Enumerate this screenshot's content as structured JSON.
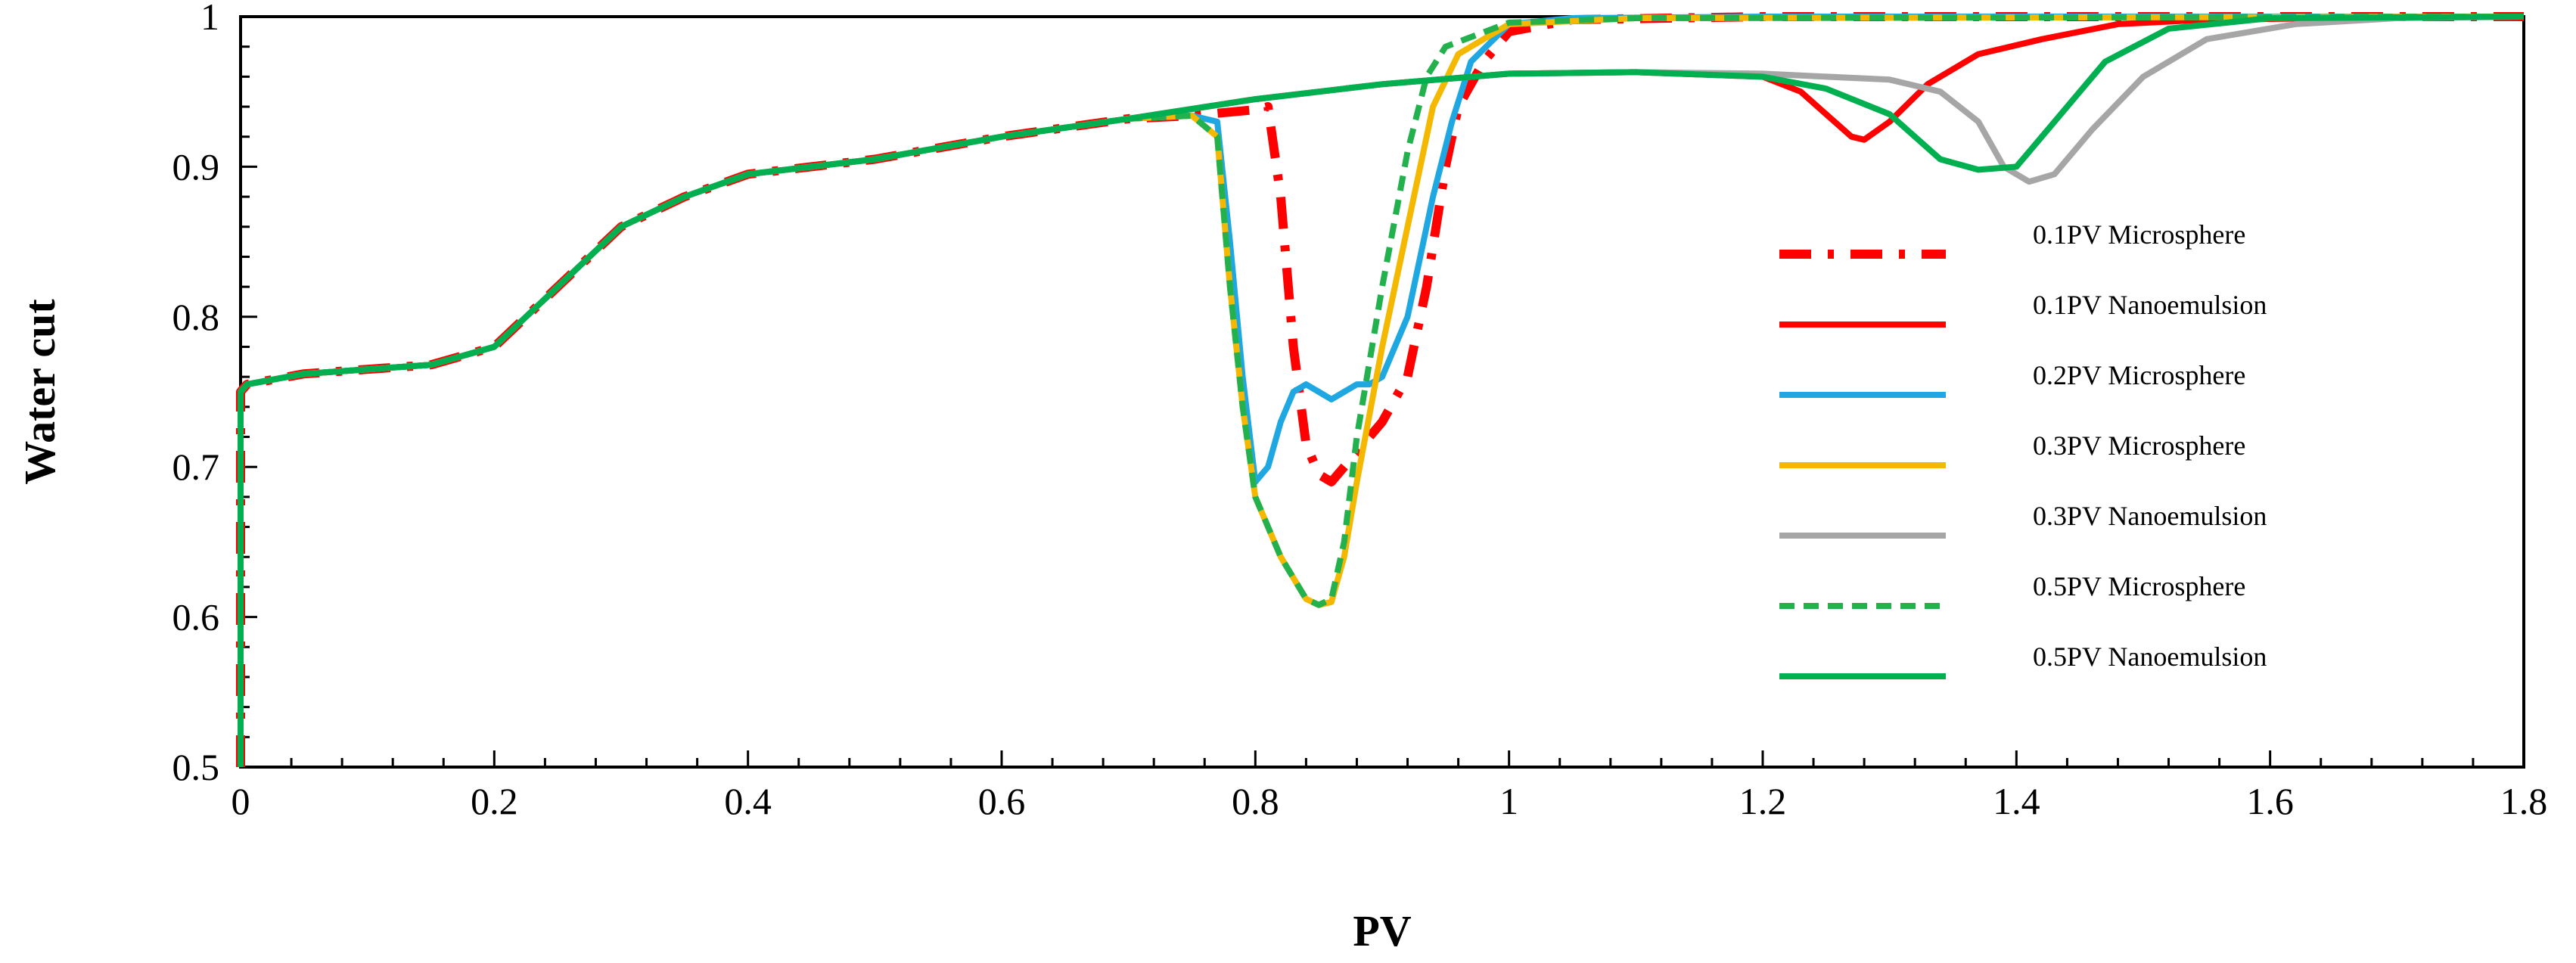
{
  "chart_data": {
    "type": "line",
    "title": "",
    "xlabel": "PV",
    "ylabel": "Water cut",
    "xlim": [
      0,
      1.8
    ],
    "ylim": [
      0.5,
      1.0
    ],
    "x_ticks": [
      0,
      0.2,
      0.4,
      0.6,
      0.8,
      1,
      1.2,
      1.4,
      1.6,
      1.8
    ],
    "y_ticks": [
      0.5,
      0.6,
      0.7,
      0.8,
      0.9,
      1
    ],
    "x_tick_labels": [
      "0",
      "0.2",
      "0.4",
      "0.6",
      "0.8",
      "1",
      "1.2",
      "1.4",
      "1.6",
      "1.8"
    ],
    "y_tick_labels": [
      "0.5",
      "0.6",
      "0.7",
      "0.8",
      "0.9",
      "1"
    ],
    "grid": false,
    "legend_position": "right",
    "series": [
      {
        "name": "0.1PV Microsphere",
        "color": "#ff0000",
        "style": "dashdot",
        "points": [
          [
            0,
            0.5
          ],
          [
            0,
            0.75
          ],
          [
            0.005,
            0.755
          ],
          [
            0.05,
            0.762
          ],
          [
            0.1,
            0.765
          ],
          [
            0.15,
            0.768
          ],
          [
            0.2,
            0.78
          ],
          [
            0.25,
            0.82
          ],
          [
            0.3,
            0.86
          ],
          [
            0.35,
            0.88
          ],
          [
            0.4,
            0.895
          ],
          [
            0.5,
            0.905
          ],
          [
            0.6,
            0.92
          ],
          [
            0.7,
            0.932
          ],
          [
            0.75,
            0.934
          ],
          [
            0.8,
            0.938
          ],
          [
            0.81,
            0.94
          ],
          [
            0.82,
            0.88
          ],
          [
            0.83,
            0.78
          ],
          [
            0.84,
            0.715
          ],
          [
            0.85,
            0.695
          ],
          [
            0.86,
            0.69
          ],
          [
            0.87,
            0.7
          ],
          [
            0.88,
            0.71
          ],
          [
            0.89,
            0.72
          ],
          [
            0.9,
            0.73
          ],
          [
            0.92,
            0.76
          ],
          [
            0.935,
            0.82
          ],
          [
            0.95,
            0.9
          ],
          [
            0.96,
            0.94
          ],
          [
            0.98,
            0.97
          ],
          [
            1.0,
            0.99
          ],
          [
            1.05,
            0.998
          ],
          [
            1.2,
            1.0
          ],
          [
            1.8,
            1.0
          ]
        ]
      },
      {
        "name": "0.1PV Nanoemulsion",
        "color": "#ff0000",
        "style": "solid",
        "points": [
          [
            0,
            0.5
          ],
          [
            0,
            0.75
          ],
          [
            0.005,
            0.755
          ],
          [
            0.05,
            0.762
          ],
          [
            0.1,
            0.765
          ],
          [
            0.15,
            0.768
          ],
          [
            0.2,
            0.78
          ],
          [
            0.25,
            0.82
          ],
          [
            0.3,
            0.86
          ],
          [
            0.35,
            0.88
          ],
          [
            0.4,
            0.895
          ],
          [
            0.5,
            0.905
          ],
          [
            0.6,
            0.92
          ],
          [
            0.7,
            0.932
          ],
          [
            0.8,
            0.945
          ],
          [
            0.9,
            0.955
          ],
          [
            1.0,
            0.962
          ],
          [
            1.1,
            0.963
          ],
          [
            1.2,
            0.96
          ],
          [
            1.23,
            0.95
          ],
          [
            1.25,
            0.935
          ],
          [
            1.27,
            0.92
          ],
          [
            1.28,
            0.918
          ],
          [
            1.3,
            0.93
          ],
          [
            1.33,
            0.955
          ],
          [
            1.37,
            0.975
          ],
          [
            1.42,
            0.985
          ],
          [
            1.48,
            0.995
          ],
          [
            1.55,
            0.998
          ],
          [
            1.65,
            0.999
          ],
          [
            1.8,
            1.0
          ]
        ]
      },
      {
        "name": "0.2PV Microsphere",
        "color": "#1ea7e1",
        "style": "solid",
        "points": [
          [
            0,
            0.5
          ],
          [
            0,
            0.75
          ],
          [
            0.005,
            0.755
          ],
          [
            0.05,
            0.762
          ],
          [
            0.1,
            0.765
          ],
          [
            0.15,
            0.768
          ],
          [
            0.2,
            0.78
          ],
          [
            0.25,
            0.82
          ],
          [
            0.3,
            0.86
          ],
          [
            0.35,
            0.88
          ],
          [
            0.4,
            0.895
          ],
          [
            0.5,
            0.905
          ],
          [
            0.6,
            0.92
          ],
          [
            0.7,
            0.932
          ],
          [
            0.75,
            0.934
          ],
          [
            0.77,
            0.93
          ],
          [
            0.78,
            0.85
          ],
          [
            0.79,
            0.76
          ],
          [
            0.8,
            0.69
          ],
          [
            0.81,
            0.7
          ],
          [
            0.82,
            0.73
          ],
          [
            0.83,
            0.75
          ],
          [
            0.84,
            0.755
          ],
          [
            0.85,
            0.75
          ],
          [
            0.86,
            0.745
          ],
          [
            0.87,
            0.75
          ],
          [
            0.88,
            0.755
          ],
          [
            0.89,
            0.755
          ],
          [
            0.9,
            0.76
          ],
          [
            0.92,
            0.8
          ],
          [
            0.94,
            0.88
          ],
          [
            0.955,
            0.93
          ],
          [
            0.97,
            0.97
          ],
          [
            1.0,
            0.995
          ],
          [
            1.05,
            0.999
          ],
          [
            1.2,
            1.0
          ],
          [
            1.8,
            1.0
          ]
        ]
      },
      {
        "name": "0.3PV Microsphere",
        "color": "#f5b800",
        "style": "solid",
        "points": [
          [
            0,
            0.5
          ],
          [
            0,
            0.75
          ],
          [
            0.005,
            0.755
          ],
          [
            0.05,
            0.762
          ],
          [
            0.1,
            0.765
          ],
          [
            0.15,
            0.768
          ],
          [
            0.2,
            0.78
          ],
          [
            0.25,
            0.82
          ],
          [
            0.3,
            0.86
          ],
          [
            0.35,
            0.88
          ],
          [
            0.4,
            0.895
          ],
          [
            0.5,
            0.905
          ],
          [
            0.6,
            0.92
          ],
          [
            0.7,
            0.932
          ],
          [
            0.75,
            0.934
          ],
          [
            0.77,
            0.92
          ],
          [
            0.78,
            0.82
          ],
          [
            0.79,
            0.74
          ],
          [
            0.8,
            0.68
          ],
          [
            0.82,
            0.64
          ],
          [
            0.84,
            0.612
          ],
          [
            0.85,
            0.608
          ],
          [
            0.86,
            0.61
          ],
          [
            0.87,
            0.64
          ],
          [
            0.88,
            0.69
          ],
          [
            0.9,
            0.78
          ],
          [
            0.92,
            0.86
          ],
          [
            0.94,
            0.94
          ],
          [
            0.96,
            0.975
          ],
          [
            1.0,
            0.995
          ],
          [
            1.1,
            0.999
          ],
          [
            1.8,
            1.0
          ]
        ]
      },
      {
        "name": "0.3PV Nanoemulsion",
        "color": "#a6a6a6",
        "style": "solid",
        "points": [
          [
            0,
            0.5
          ],
          [
            0,
            0.75
          ],
          [
            0.005,
            0.755
          ],
          [
            0.05,
            0.762
          ],
          [
            0.1,
            0.765
          ],
          [
            0.15,
            0.768
          ],
          [
            0.2,
            0.78
          ],
          [
            0.25,
            0.82
          ],
          [
            0.3,
            0.86
          ],
          [
            0.35,
            0.88
          ],
          [
            0.4,
            0.895
          ],
          [
            0.5,
            0.905
          ],
          [
            0.6,
            0.92
          ],
          [
            0.7,
            0.932
          ],
          [
            0.8,
            0.945
          ],
          [
            0.9,
            0.955
          ],
          [
            1.0,
            0.962
          ],
          [
            1.1,
            0.963
          ],
          [
            1.2,
            0.962
          ],
          [
            1.3,
            0.958
          ],
          [
            1.34,
            0.95
          ],
          [
            1.37,
            0.93
          ],
          [
            1.39,
            0.9
          ],
          [
            1.41,
            0.89
          ],
          [
            1.43,
            0.895
          ],
          [
            1.46,
            0.925
          ],
          [
            1.5,
            0.96
          ],
          [
            1.55,
            0.985
          ],
          [
            1.62,
            0.995
          ],
          [
            1.7,
            0.999
          ],
          [
            1.8,
            1.0
          ]
        ]
      },
      {
        "name": "0.5PV Microsphere",
        "color": "#22b14c",
        "style": "dashed",
        "points": [
          [
            0,
            0.5
          ],
          [
            0,
            0.75
          ],
          [
            0.005,
            0.755
          ],
          [
            0.05,
            0.762
          ],
          [
            0.1,
            0.765
          ],
          [
            0.15,
            0.768
          ],
          [
            0.2,
            0.78
          ],
          [
            0.25,
            0.82
          ],
          [
            0.3,
            0.86
          ],
          [
            0.35,
            0.88
          ],
          [
            0.4,
            0.895
          ],
          [
            0.5,
            0.905
          ],
          [
            0.6,
            0.92
          ],
          [
            0.7,
            0.932
          ],
          [
            0.75,
            0.934
          ],
          [
            0.77,
            0.92
          ],
          [
            0.78,
            0.82
          ],
          [
            0.79,
            0.74
          ],
          [
            0.8,
            0.68
          ],
          [
            0.82,
            0.64
          ],
          [
            0.84,
            0.612
          ],
          [
            0.85,
            0.608
          ],
          [
            0.86,
            0.612
          ],
          [
            0.87,
            0.65
          ],
          [
            0.88,
            0.72
          ],
          [
            0.9,
            0.82
          ],
          [
            0.92,
            0.91
          ],
          [
            0.935,
            0.96
          ],
          [
            0.95,
            0.98
          ],
          [
            1.0,
            0.996
          ],
          [
            1.1,
            0.999
          ],
          [
            1.8,
            1.0
          ]
        ]
      },
      {
        "name": "0.5PV Nanoemulsion",
        "color": "#00b050",
        "style": "solid",
        "points": [
          [
            0,
            0.5
          ],
          [
            0,
            0.75
          ],
          [
            0.005,
            0.755
          ],
          [
            0.05,
            0.762
          ],
          [
            0.1,
            0.765
          ],
          [
            0.15,
            0.768
          ],
          [
            0.2,
            0.78
          ],
          [
            0.25,
            0.82
          ],
          [
            0.3,
            0.86
          ],
          [
            0.35,
            0.88
          ],
          [
            0.4,
            0.895
          ],
          [
            0.5,
            0.905
          ],
          [
            0.6,
            0.92
          ],
          [
            0.7,
            0.932
          ],
          [
            0.8,
            0.945
          ],
          [
            0.9,
            0.955
          ],
          [
            1.0,
            0.962
          ],
          [
            1.1,
            0.963
          ],
          [
            1.2,
            0.96
          ],
          [
            1.25,
            0.952
          ],
          [
            1.3,
            0.935
          ],
          [
            1.34,
            0.905
          ],
          [
            1.37,
            0.898
          ],
          [
            1.4,
            0.9
          ],
          [
            1.43,
            0.93
          ],
          [
            1.47,
            0.97
          ],
          [
            1.52,
            0.992
          ],
          [
            1.6,
            0.999
          ],
          [
            1.8,
            1.0
          ]
        ]
      }
    ]
  }
}
